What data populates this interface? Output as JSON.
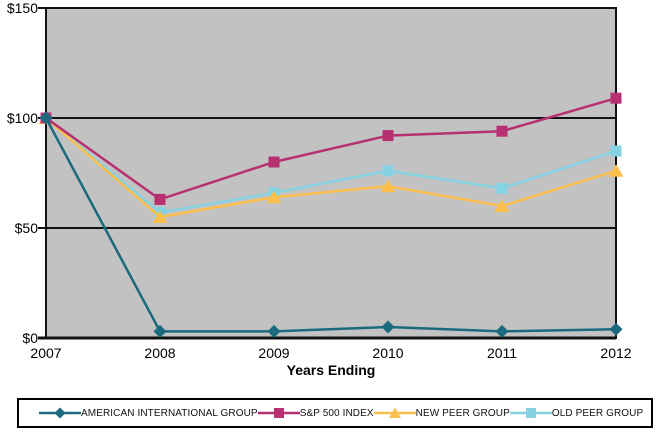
{
  "chart_data": {
    "type": "line",
    "x_label": "Years Ending",
    "x_categories": [
      "2007",
      "2008",
      "2009",
      "2010",
      "2011",
      "2012"
    ],
    "ylim": [
      0,
      150
    ],
    "y_ticks": [
      {
        "value": 150,
        "label": "$150"
      },
      {
        "value": 100,
        "label": "$100"
      },
      {
        "value": 50,
        "label": "$50"
      },
      {
        "value": 0,
        "label": "$0"
      }
    ],
    "gridlines": [
      100,
      50
    ],
    "grid_on": true,
    "legend_position": "bottom",
    "plot_background": "#c2c2c2",
    "axis_color": "#111111",
    "series": [
      {
        "name": "AMERICAN INTERNATIONAL GROUP",
        "marker": "diamond",
        "color": "#1b6a7d",
        "values": [
          100,
          3,
          3,
          5,
          3,
          4
        ]
      },
      {
        "name": "S&P 500 INDEX",
        "marker": "square",
        "color": "#b73072",
        "values": [
          100,
          63,
          80,
          92,
          94,
          109
        ]
      },
      {
        "name": "NEW PEER GROUP",
        "marker": "triangle",
        "color": "#fcbf4c",
        "values": [
          100,
          55,
          64,
          69,
          60,
          76
        ]
      },
      {
        "name": "OLD PEER GROUP",
        "marker": "square",
        "color": "#85d2e2",
        "values": [
          100,
          57,
          66,
          76,
          68,
          85
        ]
      }
    ]
  }
}
